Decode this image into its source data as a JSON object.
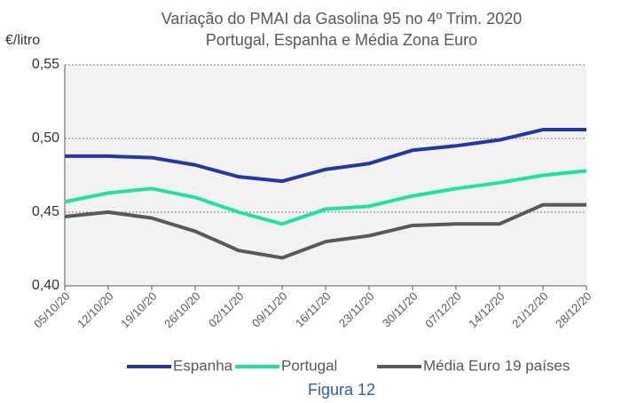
{
  "chart_data": {
    "type": "line",
    "title": "Variação do PMAI da Gasolina 95 no 4º Trim. 2020",
    "subtitle": "Portugal, Espanha e Média Zona Euro",
    "y_label": "€/litro",
    "caption": "Figura 12",
    "categories": [
      "05/10/20",
      "12/10/20",
      "19/10/20",
      "26/10/20",
      "02/11/20",
      "09/11/20",
      "16/11/20",
      "23/11/20",
      "30/11/20",
      "07/12/20",
      "14/12/20",
      "21/12/20",
      "28/12/20"
    ],
    "series": [
      {
        "name": "Espanha",
        "color": "#2337a6",
        "values": [
          0.488,
          0.488,
          0.487,
          0.482,
          0.474,
          0.471,
          0.479,
          0.483,
          0.492,
          0.495,
          0.499,
          0.506,
          0.506
        ]
      },
      {
        "name": "Portugal",
        "color": "#1de2a6",
        "values": [
          0.457,
          0.463,
          0.466,
          0.46,
          0.45,
          0.442,
          0.452,
          0.454,
          0.461,
          0.466,
          0.47,
          0.475,
          0.478
        ]
      },
      {
        "name": "Média Euro 19 países",
        "color": "#595959",
        "values": [
          0.447,
          0.45,
          0.446,
          0.437,
          0.424,
          0.419,
          0.43,
          0.434,
          0.441,
          0.442,
          0.442,
          0.455,
          0.455
        ]
      }
    ],
    "ylim": [
      0.4,
      0.55
    ],
    "yticks": [
      {
        "value": 0.4,
        "label": "0,40"
      },
      {
        "value": 0.45,
        "label": "0,45"
      },
      {
        "value": 0.5,
        "label": "0,50"
      },
      {
        "value": 0.55,
        "label": "0,55"
      }
    ],
    "grid": true,
    "legend": "bottom"
  }
}
